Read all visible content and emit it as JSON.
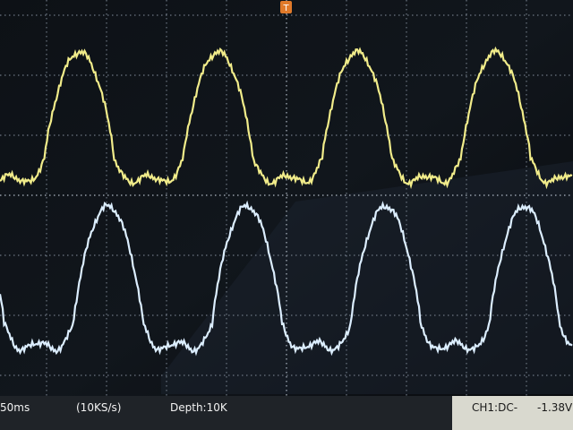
{
  "trigger_marker": "T",
  "status_bar": {
    "timebase": "50ms",
    "sample_rate": "(10KS/s)",
    "depth": "Depth:10K",
    "channel": "CH1:DC-",
    "trigger_level": "-1.38V"
  }
}
